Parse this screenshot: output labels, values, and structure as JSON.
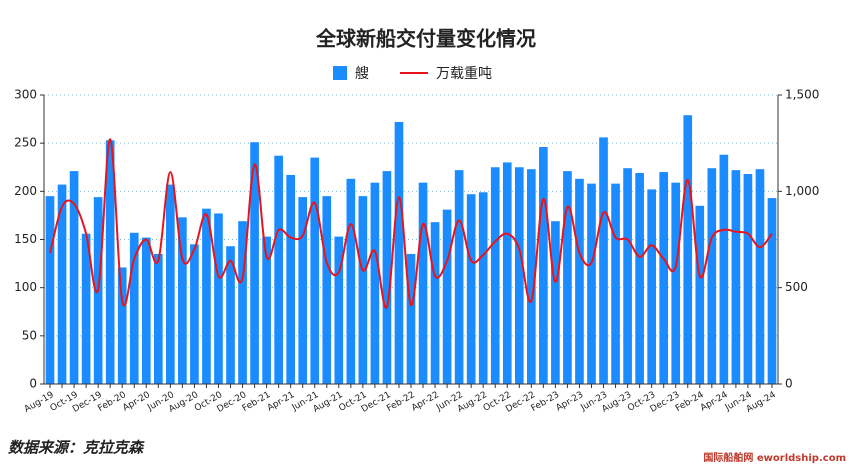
{
  "chart_data": {
    "type": "bar_line",
    "title": "全球新船交付量变化情况",
    "source": "数据来源：克拉克森",
    "watermark": "国际船舶网 eworldship.com",
    "categories": [
      "Aug-19",
      null,
      "Oct-19",
      null,
      "Dec-19",
      null,
      "Feb-20",
      null,
      "Apr-20",
      null,
      "Jun-20",
      null,
      "Aug-20",
      null,
      "Oct-20",
      null,
      "Dec-20",
      null,
      "Feb-21",
      null,
      "Apr-21",
      null,
      "Jun-21",
      null,
      "Aug-21",
      null,
      "Oct-21",
      null,
      "Dec-21",
      null,
      "Feb-22",
      null,
      "Apr-22",
      null,
      "Jun-22",
      null,
      "Aug-22",
      null,
      "Oct-22",
      null,
      "Dec-22",
      null,
      "Feb-23",
      null,
      "Apr-23",
      null,
      "Jun-23",
      null,
      "Aug-23",
      null,
      "Oct-23",
      null,
      "Dec-23",
      null,
      "Feb-24",
      null,
      "Apr-24",
      null,
      "Jun-24",
      null,
      "Aug-24"
    ],
    "series": [
      {
        "name": "艘",
        "color": "#1a8cff",
        "kind": "bar",
        "values": [
          195,
          207,
          221,
          156,
          194,
          253,
          121,
          157,
          152,
          135,
          207,
          173,
          145,
          182,
          177,
          143,
          169,
          251,
          153,
          237,
          217,
          194,
          235,
          195,
          153,
          213,
          195,
          209,
          221,
          272,
          135,
          209,
          168,
          181,
          222,
          197,
          199,
          225,
          230,
          225,
          223,
          246,
          169,
          221,
          213,
          208,
          256,
          208,
          224,
          219,
          202,
          220,
          209,
          279,
          185,
          224,
          238,
          222,
          218,
          223,
          193
        ]
      },
      {
        "name": "万载重吨",
        "color": "#e8141c",
        "kind": "line",
        "axis": "y2",
        "values": [
          680,
          920,
          935,
          780,
          490,
          1270,
          430,
          650,
          750,
          640,
          1100,
          650,
          700,
          880,
          560,
          640,
          550,
          1140,
          660,
          800,
          760,
          770,
          940,
          630,
          580,
          830,
          590,
          690,
          400,
          970,
          410,
          830,
          560,
          640,
          850,
          640,
          670,
          740,
          780,
          700,
          430,
          960,
          530,
          920,
          680,
          630,
          890,
          760,
          750,
          660,
          720,
          650,
          610,
          1060,
          560,
          760,
          800,
          790,
          780,
          710,
          780
        ]
      }
    ],
    "ylim": [
      0,
      300
    ],
    "yticks": [
      0,
      50,
      100,
      150,
      200,
      250,
      300
    ],
    "y2lim": [
      0,
      1500
    ],
    "y2ticks": [
      0,
      500,
      {
        "value": 1000,
        "label": "1,000"
      },
      {
        "value": 1500,
        "label": "1,500"
      }
    ],
    "grid": true,
    "legend": "top"
  }
}
